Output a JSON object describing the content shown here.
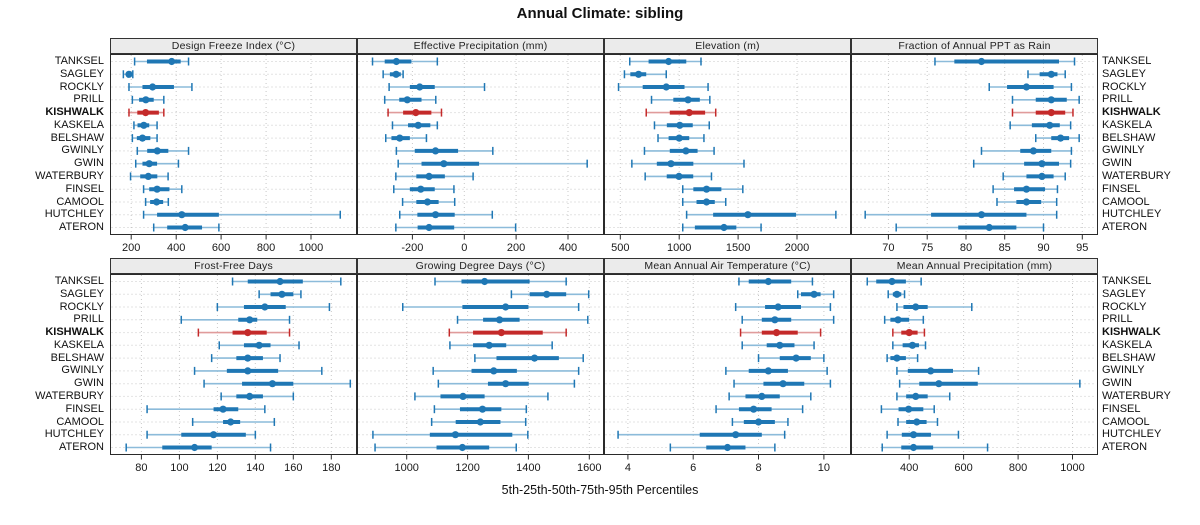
{
  "title": "Annual Climate: sibling",
  "footer": "5th-25th-50th-75th-95th Percentiles",
  "highlight_station": "KISHWALK",
  "percentiles": [
    5,
    25,
    50,
    75,
    95
  ],
  "stations": [
    "TANKSEL",
    "SAGLEY",
    "ROCKLY",
    "PRILL",
    "KISHWALK",
    "KASKELA",
    "BELSHAW",
    "GWINLY",
    "GWIN",
    "WATERBURY",
    "FINSEL",
    "CAMOOL",
    "HUTCHLEY",
    "ATERON"
  ],
  "colors": {
    "normal": "#1f77b4",
    "normal_light": "#8cbbda",
    "highlight": "#c42a2a",
    "highlight_light": "#e09b9b",
    "grid": "#c8c8c8",
    "border": "#2a2a2a",
    "header_bg": "#ebebeb",
    "tick_text": "#1a1a1a"
  },
  "chart_data": [
    {
      "type": "scatter",
      "style": "horizontal-percentile-intervals",
      "title": "Design Freeze Index (°C)",
      "xlim": [
        110,
        1200
      ],
      "xticks": [
        200,
        400,
        600,
        800,
        1000
      ],
      "values": [
        [
          215,
          270,
          380,
          420,
          455
        ],
        [
          165,
          180,
          190,
          200,
          207
        ],
        [
          190,
          250,
          295,
          390,
          470
        ],
        [
          205,
          235,
          265,
          300,
          345
        ],
        [
          190,
          227,
          264,
          323,
          345
        ],
        [
          212,
          228,
          256,
          280,
          315
        ],
        [
          205,
          225,
          250,
          285,
          315
        ],
        [
          227,
          271,
          316,
          365,
          455
        ],
        [
          220,
          250,
          280,
          315,
          410
        ],
        [
          197,
          240,
          276,
          316,
          364
        ],
        [
          255,
          280,
          315,
          370,
          425
        ],
        [
          264,
          284,
          313,
          342,
          365
        ],
        [
          255,
          315,
          425,
          590,
          1130
        ],
        [
          300,
          360,
          440,
          515,
          590
        ]
      ]
    },
    {
      "type": "scatter",
      "style": "horizontal-percentile-intervals",
      "title": "Effective Precipitation (mm)",
      "xlim": [
        -410,
        535
      ],
      "xticks": [
        -200,
        0,
        200,
        400
      ],
      "values": [
        [
          -354,
          -307,
          -262,
          -204,
          -104
        ],
        [
          -313,
          -287,
          -263,
          -245,
          -236
        ],
        [
          -290,
          -210,
          -172,
          -114,
          78
        ],
        [
          -307,
          -251,
          -220,
          -165,
          -110
        ],
        [
          -294,
          -236,
          -187,
          -127,
          -88
        ],
        [
          -277,
          -217,
          -178,
          -131,
          -104
        ],
        [
          -303,
          -281,
          -249,
          -210,
          -146
        ],
        [
          -262,
          -191,
          -111,
          -24,
          110
        ],
        [
          -255,
          -165,
          -79,
          57,
          474
        ],
        [
          -264,
          -185,
          -136,
          -75,
          34
        ],
        [
          -272,
          -210,
          -168,
          -114,
          -40
        ],
        [
          -238,
          -185,
          -142,
          -99,
          -37
        ],
        [
          -249,
          -181,
          -111,
          -37,
          108
        ],
        [
          -264,
          -180,
          -136,
          -39,
          198
        ]
      ]
    },
    {
      "type": "scatter",
      "style": "horizontal-percentile-intervals",
      "title": "Elevation (m)",
      "xlim": [
        370,
        2450
      ],
      "xticks": [
        500,
        1000,
        1500,
        2000
      ],
      "values": [
        [
          580,
          740,
          910,
          1060,
          1185
        ],
        [
          535,
          585,
          655,
          720,
          890
        ],
        [
          485,
          690,
          890,
          1045,
          1245
        ],
        [
          765,
          950,
          1075,
          1175,
          1260
        ],
        [
          720,
          920,
          1085,
          1220,
          1310
        ],
        [
          790,
          895,
          1005,
          1115,
          1255
        ],
        [
          820,
          910,
          1000,
          1085,
          1210
        ],
        [
          705,
          920,
          1057,
          1156,
          1296
        ],
        [
          598,
          810,
          930,
          1120,
          1550
        ],
        [
          711,
          894,
          998,
          1119,
          1274
        ],
        [
          1030,
          1120,
          1232,
          1358,
          1540
        ],
        [
          1030,
          1147,
          1232,
          1302,
          1395
        ],
        [
          1063,
          1288,
          1583,
          1992,
          2330
        ],
        [
          1030,
          1133,
          1380,
          1485,
          1695
        ]
      ]
    },
    {
      "type": "scatter",
      "style": "horizontal-percentile-intervals",
      "title": "Fraction of Annual PPT as Rain",
      "xlim": [
        65.3,
        96.9
      ],
      "xticks": [
        70,
        75,
        80,
        85,
        90,
        95
      ],
      "values": [
        [
          76,
          78.5,
          82,
          92,
          94
        ],
        [
          88,
          89.5,
          91,
          91.8,
          92.8
        ],
        [
          83,
          85.3,
          87.8,
          91.3,
          93.6
        ],
        [
          86,
          89,
          91,
          93,
          94.6
        ],
        [
          86,
          89,
          91,
          92.8,
          93.8
        ],
        [
          85.7,
          88.5,
          90.8,
          92.1,
          93.5
        ],
        [
          89,
          91,
          92.2,
          93.3,
          94.6
        ],
        [
          82,
          87,
          88.7,
          91,
          93.6
        ],
        [
          81,
          87.5,
          89.8,
          92,
          93.5
        ],
        [
          84.8,
          87.8,
          89.8,
          91.3,
          92.8
        ],
        [
          83.5,
          86.2,
          87.8,
          90.2,
          91.8
        ],
        [
          84,
          86.5,
          87.8,
          89.7,
          91.7
        ],
        [
          67,
          75.5,
          82,
          87.8,
          91.7
        ],
        [
          71,
          79,
          83,
          86.5,
          90
        ]
      ]
    },
    {
      "type": "scatter",
      "style": "horizontal-percentile-intervals",
      "title": "Frost-Free Days",
      "xlim": [
        64,
        193
      ],
      "xticks": [
        80,
        100,
        120,
        140,
        160,
        180
      ],
      "values": [
        [
          128,
          136,
          153,
          165,
          185
        ],
        [
          142,
          148,
          154,
          160,
          164
        ],
        [
          120,
          134,
          145,
          156,
          179
        ],
        [
          101,
          131,
          137,
          141,
          158
        ],
        [
          110,
          128,
          136,
          146,
          158
        ],
        [
          121,
          134,
          142,
          148,
          163
        ],
        [
          117,
          130,
          136,
          144,
          153
        ],
        [
          108,
          125,
          136,
          152,
          175
        ],
        [
          113,
          133,
          149,
          160,
          190
        ],
        [
          122,
          130,
          137,
          144,
          160
        ],
        [
          83,
          118,
          123,
          131,
          145
        ],
        [
          107,
          123,
          127,
          132,
          150
        ],
        [
          83,
          101,
          118,
          135,
          140
        ],
        [
          72,
          91,
          108,
          117,
          148
        ]
      ]
    },
    {
      "type": "scatter",
      "style": "horizontal-percentile-intervals",
      "title": "Growing Degree Days (°C)",
      "xlim": [
        840,
        1645
      ],
      "xticks": [
        1000,
        1200,
        1400,
        1600
      ],
      "values": [
        [
          1093,
          1180,
          1256,
          1404,
          1524
        ],
        [
          1344,
          1404,
          1460,
          1524,
          1598
        ],
        [
          987,
          1183,
          1325,
          1400,
          1565
        ],
        [
          1167,
          1251,
          1305,
          1371,
          1595
        ],
        [
          1140,
          1218,
          1311,
          1447,
          1524
        ],
        [
          1142,
          1218,
          1271,
          1327,
          1478
        ],
        [
          1224,
          1295,
          1420,
          1500,
          1580
        ],
        [
          1087,
          1213,
          1286,
          1362,
          1565
        ],
        [
          1104,
          1267,
          1325,
          1401,
          1551
        ],
        [
          1027,
          1111,
          1185,
          1256,
          1464
        ],
        [
          1091,
          1175,
          1249,
          1311,
          1393
        ],
        [
          1082,
          1161,
          1242,
          1308,
          1391
        ],
        [
          889,
          1076,
          1160,
          1347,
          1398
        ],
        [
          896,
          1098,
          1183,
          1271,
          1360
        ]
      ]
    },
    {
      "type": "scatter",
      "style": "horizontal-percentile-intervals",
      "title": "Mean Annual Air Temperature (°C)",
      "xlim": [
        3.3,
        10.8
      ],
      "xticks": [
        4,
        6,
        8,
        10
      ],
      "values": [
        [
          7.4,
          7.7,
          8.3,
          9.0,
          9.65
        ],
        [
          9.2,
          9.3,
          9.7,
          9.9,
          10.3
        ],
        [
          7.3,
          8.2,
          8.6,
          9.3,
          10.2
        ],
        [
          7.5,
          8.1,
          8.5,
          9.0,
          10.3
        ],
        [
          7.45,
          8.1,
          8.55,
          9.2,
          9.9
        ],
        [
          7.5,
          8.25,
          8.65,
          9.1,
          9.7
        ],
        [
          8.0,
          8.65,
          9.15,
          9.6,
          10.0
        ],
        [
          7.0,
          7.7,
          8.3,
          8.9,
          10.1
        ],
        [
          7.25,
          8.15,
          8.75,
          9.4,
          10.2
        ],
        [
          7.1,
          7.6,
          8.1,
          8.65,
          9.6
        ],
        [
          6.7,
          7.4,
          7.85,
          8.4,
          9.35
        ],
        [
          7.2,
          7.55,
          8.0,
          8.5,
          8.9
        ],
        [
          3.7,
          6.2,
          7.3,
          8.1,
          8.8
        ],
        [
          5.3,
          6.4,
          7.05,
          7.6,
          8.5
        ]
      ]
    },
    {
      "type": "scatter",
      "style": "horizontal-percentile-intervals",
      "title": "Mean Annual Precipitation (mm)",
      "xlim": [
        190,
        1090
      ],
      "xticks": [
        400,
        600,
        800,
        1000
      ],
      "values": [
        [
          246,
          279,
          337,
          388,
          444
        ],
        [
          323,
          340,
          355,
          371,
          383
        ],
        [
          355,
          379,
          424,
          468,
          630
        ],
        [
          310,
          331,
          359,
          400,
          452
        ],
        [
          340,
          371,
          400,
          431,
          456
        ],
        [
          340,
          376,
          412,
          436,
          460
        ],
        [
          319,
          331,
          355,
          388,
          431
        ],
        [
          355,
          395,
          479,
          561,
          655
        ],
        [
          365,
          437,
          509,
          652,
          1027
        ],
        [
          355,
          389,
          424,
          468,
          549
        ],
        [
          298,
          361,
          398,
          452,
          492
        ],
        [
          359,
          389,
          428,
          464,
          504
        ],
        [
          319,
          373,
          416,
          480,
          581
        ],
        [
          301,
          371,
          416,
          488,
          688
        ]
      ]
    }
  ]
}
